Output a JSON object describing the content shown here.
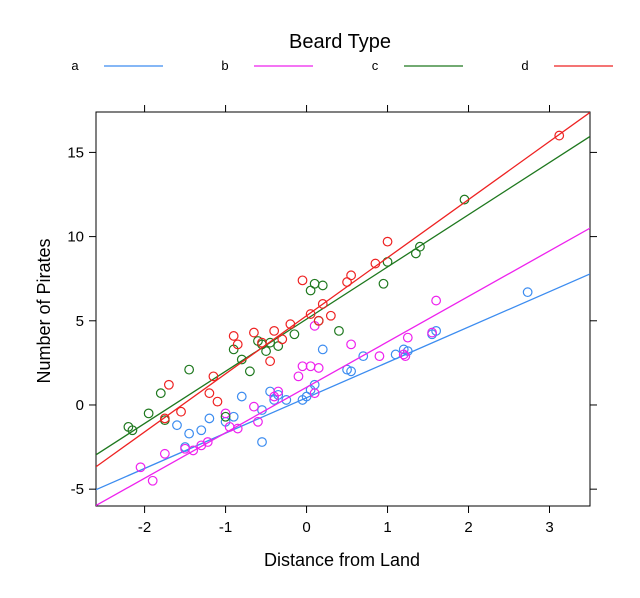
{
  "chart_data": {
    "type": "scatter",
    "title": "",
    "xlabel": "Distance from Land",
    "ylabel": "Number of Pirates",
    "xlim": [
      -2.6,
      3.5
    ],
    "ylim": [
      -6,
      17.4
    ],
    "x_ticks": [
      -2,
      -1,
      0,
      1,
      2,
      3
    ],
    "x_tick_labels": [
      "-2",
      "-1",
      "0",
      "1",
      "2",
      "3"
    ],
    "y_ticks": [
      -5,
      0,
      5,
      10,
      15
    ],
    "y_tick_labels": [
      "-5",
      "0",
      "5",
      "10",
      "15"
    ],
    "grid": false,
    "legend": {
      "title": "Beard Type",
      "position": "top",
      "entries": [
        "a",
        "b",
        "c",
        "d"
      ]
    },
    "series": [
      {
        "name": "a",
        "color": "#3c8cf0",
        "fit": {
          "intercept": 0.43,
          "slope": 2.1
        },
        "points": [
          [
            -1.6,
            -1.2
          ],
          [
            -1.45,
            -1.7
          ],
          [
            -1.5,
            -2.5
          ],
          [
            -1.3,
            -1.5
          ],
          [
            -1.2,
            -0.8
          ],
          [
            -1.0,
            -1.0
          ],
          [
            -0.9,
            -0.7
          ],
          [
            -0.8,
            0.5
          ],
          [
            -0.55,
            -2.2
          ],
          [
            -0.55,
            -0.3
          ],
          [
            -0.45,
            0.8
          ],
          [
            -0.4,
            0.3
          ],
          [
            -0.35,
            0.6
          ],
          [
            -0.25,
            0.3
          ],
          [
            -0.05,
            0.3
          ],
          [
            0.0,
            0.5
          ],
          [
            0.05,
            0.9
          ],
          [
            0.1,
            1.2
          ],
          [
            0.2,
            3.3
          ],
          [
            0.5,
            2.1
          ],
          [
            0.55,
            2.0
          ],
          [
            0.7,
            2.9
          ],
          [
            1.1,
            3.0
          ],
          [
            1.2,
            3.3
          ],
          [
            1.25,
            3.2
          ],
          [
            1.55,
            4.2
          ],
          [
            1.6,
            4.4
          ],
          [
            2.73,
            6.7
          ]
        ]
      },
      {
        "name": "b",
        "color": "#ee22ee",
        "fit": {
          "intercept": 1.05,
          "slope": 2.7
        },
        "points": [
          [
            -2.05,
            -3.7
          ],
          [
            -1.9,
            -4.5
          ],
          [
            -1.75,
            -2.9
          ],
          [
            -1.5,
            -2.6
          ],
          [
            -1.4,
            -2.7
          ],
          [
            -1.3,
            -2.4
          ],
          [
            -1.22,
            -2.2
          ],
          [
            -1.0,
            -0.5
          ],
          [
            -0.95,
            -1.3
          ],
          [
            -0.85,
            -1.4
          ],
          [
            -0.65,
            -0.1
          ],
          [
            -0.6,
            -1.0
          ],
          [
            -0.4,
            0.5
          ],
          [
            -0.35,
            0.8
          ],
          [
            -0.1,
            1.7
          ],
          [
            -0.05,
            2.3
          ],
          [
            0.05,
            2.3
          ],
          [
            0.1,
            0.7
          ],
          [
            0.1,
            4.7
          ],
          [
            0.15,
            2.2
          ],
          [
            0.55,
            3.6
          ],
          [
            0.9,
            2.9
          ],
          [
            1.2,
            3.0
          ],
          [
            1.22,
            2.9
          ],
          [
            1.25,
            4.0
          ],
          [
            1.55,
            4.3
          ],
          [
            1.6,
            6.2
          ]
        ]
      },
      {
        "name": "c",
        "color": "#1e781e",
        "fit": {
          "intercept": 5.1,
          "slope": 3.1
        },
        "points": [
          [
            -2.2,
            -1.3
          ],
          [
            -2.15,
            -1.5
          ],
          [
            -1.95,
            -0.5
          ],
          [
            -1.8,
            0.7
          ],
          [
            -1.75,
            -0.9
          ],
          [
            -1.45,
            2.1
          ],
          [
            -1.0,
            -0.7
          ],
          [
            -0.9,
            3.3
          ],
          [
            -0.8,
            2.7
          ],
          [
            -0.7,
            2.0
          ],
          [
            -0.6,
            3.8
          ],
          [
            -0.55,
            3.6
          ],
          [
            -0.5,
            3.2
          ],
          [
            -0.45,
            3.7
          ],
          [
            -0.35,
            3.5
          ],
          [
            -0.15,
            4.2
          ],
          [
            0.05,
            6.8
          ],
          [
            0.1,
            7.2
          ],
          [
            0.15,
            5.0
          ],
          [
            0.2,
            7.1
          ],
          [
            0.4,
            4.4
          ],
          [
            0.95,
            7.2
          ],
          [
            1.0,
            8.5
          ],
          [
            1.35,
            9.0
          ],
          [
            1.4,
            9.4
          ],
          [
            1.95,
            12.2
          ]
        ]
      },
      {
        "name": "d",
        "color": "#ee2222",
        "fit": {
          "intercept": 5.3,
          "slope": 3.45
        },
        "points": [
          [
            -1.7,
            1.2
          ],
          [
            -1.75,
            -0.8
          ],
          [
            -1.55,
            -0.4
          ],
          [
            -1.2,
            0.7
          ],
          [
            -1.15,
            1.7
          ],
          [
            -1.1,
            0.2
          ],
          [
            -0.9,
            4.1
          ],
          [
            -0.85,
            3.6
          ],
          [
            -0.65,
            4.3
          ],
          [
            -0.55,
            3.7
          ],
          [
            -0.45,
            2.6
          ],
          [
            -0.4,
            4.4
          ],
          [
            -0.3,
            3.9
          ],
          [
            -0.2,
            4.8
          ],
          [
            -0.05,
            7.4
          ],
          [
            0.05,
            5.4
          ],
          [
            0.15,
            5.0
          ],
          [
            0.2,
            6.0
          ],
          [
            0.3,
            5.3
          ],
          [
            0.5,
            7.3
          ],
          [
            0.55,
            7.7
          ],
          [
            0.85,
            8.4
          ],
          [
            1.0,
            9.7
          ],
          [
            3.12,
            16.0
          ]
        ]
      }
    ]
  }
}
